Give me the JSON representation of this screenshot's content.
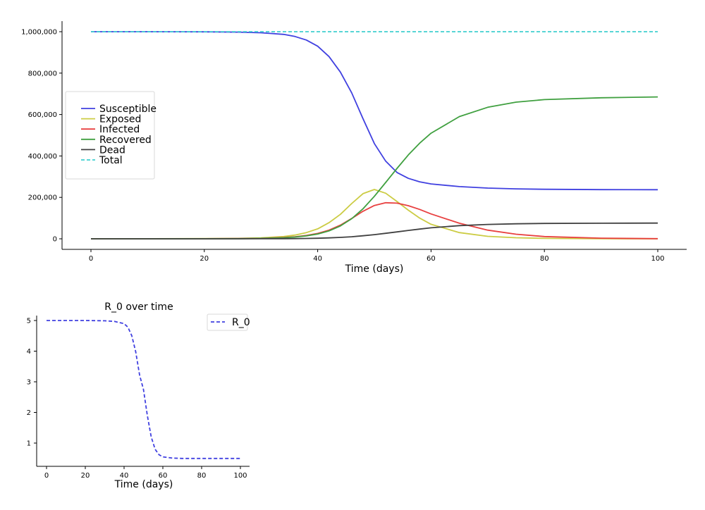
{
  "chart_data": [
    {
      "type": "line",
      "title": "",
      "xlabel": "Time (days)",
      "ylabel": "",
      "xlim": [
        -5,
        105
      ],
      "ylim": [
        -50000,
        1050000
      ],
      "xticks": [
        0,
        20,
        40,
        60,
        80,
        100
      ],
      "yticks": [
        0,
        200000,
        400000,
        600000,
        800000,
        1000000
      ],
      "ytick_labels": [
        "0",
        "200,000",
        "400,000",
        "600,000",
        "800,000",
        "1,000,000"
      ],
      "grid": false,
      "legend_position": "center-left",
      "series": [
        {
          "name": "Susceptible",
          "color": "#4040e0",
          "style": "solid",
          "x": [
            0,
            10,
            20,
            26,
            30,
            34,
            36,
            38,
            40,
            42,
            44,
            46,
            48,
            50,
            52,
            54,
            56,
            58,
            60,
            65,
            70,
            75,
            80,
            90,
            100
          ],
          "y": [
            1000000,
            999900,
            999300,
            998000,
            995000,
            987000,
            977000,
            960000,
            930000,
            880000,
            805000,
            705000,
            580000,
            460000,
            375000,
            320000,
            292000,
            275000,
            265000,
            252000,
            245000,
            241000,
            239000,
            237500,
            237000
          ]
        },
        {
          "name": "Exposed",
          "color": "#cccc44",
          "style": "solid",
          "x": [
            0,
            10,
            20,
            26,
            30,
            34,
            36,
            38,
            40,
            42,
            44,
            46,
            48,
            50,
            52,
            54,
            56,
            58,
            60,
            65,
            70,
            75,
            80,
            90,
            100
          ],
          "y": [
            0,
            200,
            900,
            2200,
            4500,
            11000,
            18000,
            30000,
            48000,
            78000,
            118000,
            170000,
            218000,
            238000,
            220000,
            180000,
            138000,
            100000,
            70000,
            30000,
            12000,
            5000,
            2000,
            300,
            50
          ]
        },
        {
          "name": "Infected",
          "color": "#e84040",
          "style": "solid",
          "x": [
            0,
            10,
            20,
            26,
            30,
            34,
            36,
            38,
            40,
            42,
            44,
            46,
            48,
            50,
            52,
            54,
            56,
            58,
            60,
            65,
            70,
            75,
            80,
            90,
            100
          ],
          "y": [
            0,
            100,
            500,
            1200,
            2500,
            6000,
            10000,
            16000,
            26000,
            42000,
            66000,
            98000,
            133000,
            161000,
            174000,
            172000,
            160000,
            142000,
            120000,
            75000,
            42000,
            22000,
            11000,
            3000,
            800
          ]
        },
        {
          "name": "Recovered",
          "color": "#40a040",
          "style": "solid",
          "x": [
            0,
            10,
            20,
            26,
            30,
            34,
            36,
            38,
            40,
            42,
            44,
            46,
            48,
            50,
            52,
            54,
            56,
            58,
            60,
            65,
            70,
            75,
            80,
            90,
            100
          ],
          "y": [
            0,
            50,
            300,
            800,
            2000,
            5000,
            8500,
            14000,
            23000,
            38000,
            62000,
            97000,
            145000,
            205000,
            272000,
            340000,
            405000,
            462000,
            510000,
            590000,
            635000,
            660000,
            672000,
            681000,
            685000
          ]
        },
        {
          "name": "Dead",
          "color": "#404040",
          "style": "solid",
          "x": [
            0,
            10,
            20,
            26,
            30,
            34,
            36,
            38,
            40,
            42,
            44,
            46,
            48,
            50,
            52,
            54,
            56,
            58,
            60,
            65,
            70,
            75,
            80,
            90,
            100
          ],
          "y": [
            0,
            0,
            50,
            150,
            300,
            700,
            1100,
            1700,
            2700,
            4300,
            6700,
            10000,
            14500,
            20000,
            26500,
            33500,
            40500,
            47000,
            53000,
            63500,
            69500,
            72500,
            74000,
            75300,
            76000
          ]
        },
        {
          "name": "Total",
          "color": "#40d0d0",
          "style": "dashed",
          "x": [
            0,
            100
          ],
          "y": [
            1000000,
            1000000
          ]
        }
      ]
    },
    {
      "type": "line",
      "title": "R_0 over time",
      "xlabel": "Time (days)",
      "ylabel": "",
      "xlim": [
        -5,
        105
      ],
      "ylim": [
        0.25,
        5.25
      ],
      "xticks": [
        0,
        20,
        40,
        60,
        80,
        100
      ],
      "yticks": [
        1,
        2,
        3,
        4,
        5
      ],
      "grid": false,
      "legend_position": "top-right",
      "series": [
        {
          "name": "R_0",
          "color": "#4040e0",
          "style": "dashed",
          "x": [
            0,
            10,
            20,
            30,
            35,
            40,
            42,
            44,
            46,
            48,
            50,
            52,
            54,
            56,
            58,
            60,
            65,
            70,
            80,
            100
          ],
          "y": [
            5,
            5,
            5,
            4.99,
            4.97,
            4.9,
            4.78,
            4.5,
            3.98,
            3.22,
            2.75,
            1.9,
            1.2,
            0.8,
            0.62,
            0.55,
            0.51,
            0.5,
            0.5,
            0.5
          ]
        }
      ]
    }
  ]
}
